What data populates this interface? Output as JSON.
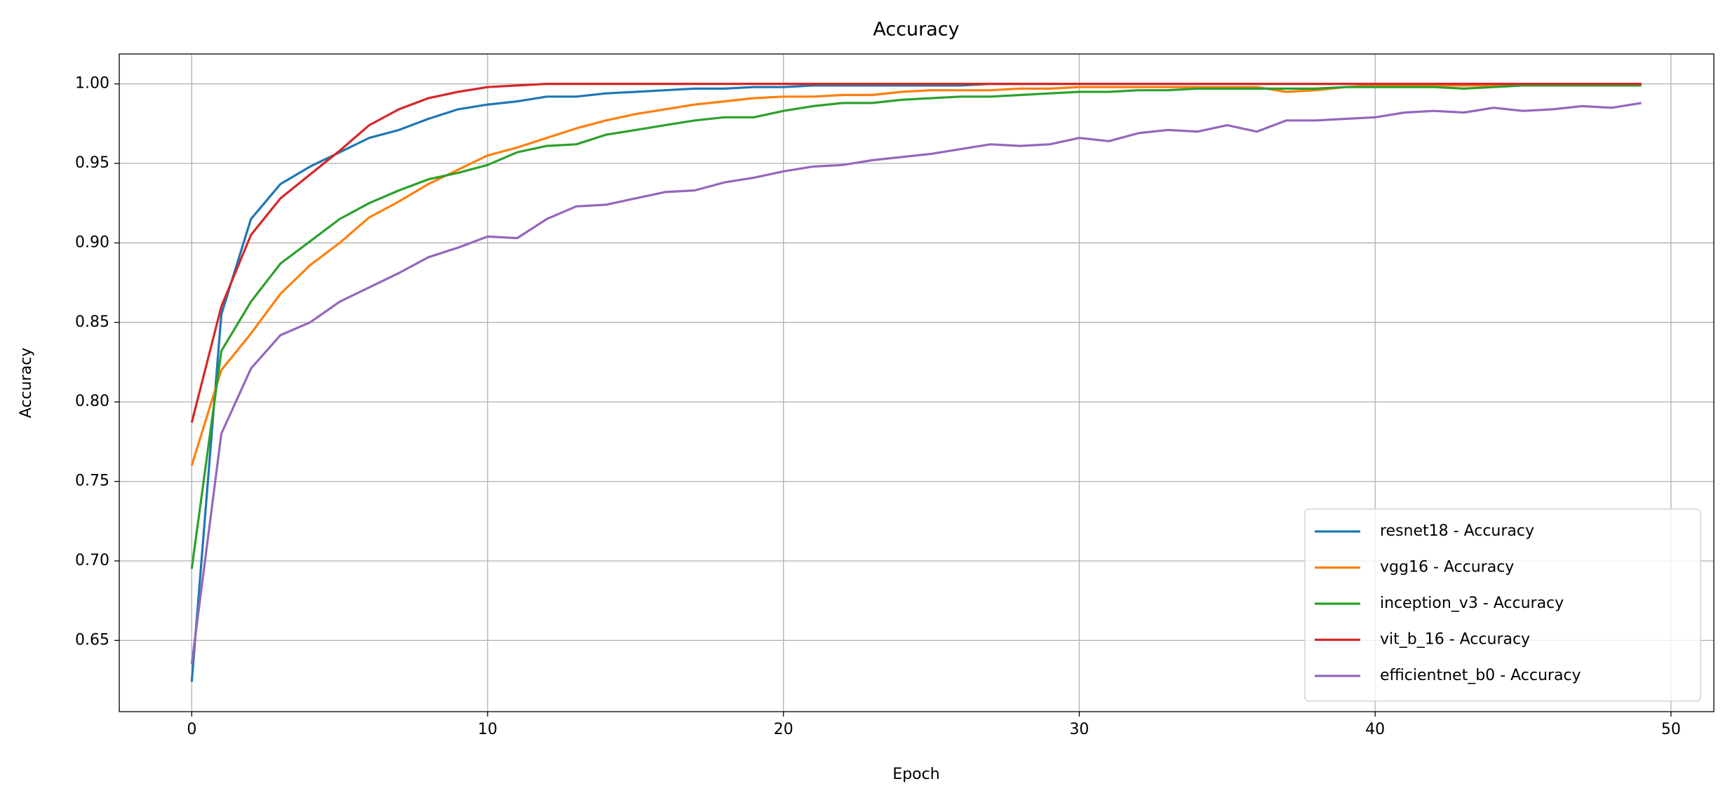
{
  "chart_data": {
    "type": "line",
    "title": "Accuracy",
    "x_label": "Epoch",
    "y_label": "Accuracy",
    "x": [
      0,
      1,
      2,
      3,
      4,
      5,
      6,
      7,
      8,
      9,
      10,
      11,
      12,
      13,
      14,
      15,
      16,
      17,
      18,
      19,
      20,
      21,
      22,
      23,
      24,
      25,
      26,
      27,
      28,
      29,
      30,
      31,
      32,
      33,
      34,
      35,
      36,
      37,
      38,
      39,
      40,
      41,
      42,
      43,
      44,
      45,
      46,
      47,
      48,
      49
    ],
    "series": [
      {
        "name": "resnet18 - Accuracy",
        "color": "#1f77b4",
        "values": [
          0.624,
          0.855,
          0.915,
          0.937,
          0.948,
          0.957,
          0.966,
          0.971,
          0.978,
          0.984,
          0.987,
          0.989,
          0.992,
          0.992,
          0.994,
          0.995,
          0.996,
          0.997,
          0.997,
          0.998,
          0.998,
          0.999,
          0.999,
          0.999,
          0.999,
          0.999,
          0.999,
          1.0,
          1.0,
          1.0,
          1.0,
          1.0,
          1.0,
          1.0,
          1.0,
          1.0,
          1.0,
          1.0,
          1.0,
          1.0,
          1.0,
          1.0,
          1.0,
          1.0,
          1.0,
          1.0,
          1.0,
          1.0,
          1.0,
          1.0
        ]
      },
      {
        "name": "vgg16 - Accuracy",
        "color": "#ff7f0e",
        "values": [
          0.76,
          0.82,
          0.843,
          0.868,
          0.886,
          0.9,
          0.916,
          0.926,
          0.937,
          0.946,
          0.955,
          0.96,
          0.966,
          0.972,
          0.977,
          0.981,
          0.984,
          0.987,
          0.989,
          0.991,
          0.992,
          0.992,
          0.993,
          0.993,
          0.995,
          0.996,
          0.996,
          0.996,
          0.997,
          0.997,
          0.998,
          0.998,
          0.998,
          0.998,
          0.998,
          0.998,
          0.998,
          0.995,
          0.996,
          0.998,
          0.999,
          0.999,
          0.999,
          0.999,
          0.999,
          0.999,
          0.999,
          0.999,
          0.999,
          0.999
        ]
      },
      {
        "name": "inception_v3 - Accuracy",
        "color": "#2ca02c",
        "values": [
          0.695,
          0.832,
          0.863,
          0.887,
          0.901,
          0.915,
          0.925,
          0.933,
          0.94,
          0.944,
          0.949,
          0.957,
          0.961,
          0.962,
          0.968,
          0.971,
          0.974,
          0.977,
          0.979,
          0.979,
          0.983,
          0.986,
          0.988,
          0.988,
          0.99,
          0.991,
          0.992,
          0.992,
          0.993,
          0.994,
          0.995,
          0.995,
          0.996,
          0.996,
          0.997,
          0.997,
          0.997,
          0.997,
          0.997,
          0.998,
          0.998,
          0.998,
          0.998,
          0.997,
          0.998,
          0.999,
          0.999,
          0.999,
          0.999,
          0.999
        ]
      },
      {
        "name": "vit_b_16 - Accuracy",
        "color": "#d62728",
        "values": [
          0.787,
          0.86,
          0.905,
          0.928,
          0.943,
          0.958,
          0.974,
          0.984,
          0.991,
          0.995,
          0.998,
          0.999,
          1.0,
          1.0,
          1.0,
          1.0,
          1.0,
          1.0,
          1.0,
          1.0,
          1.0,
          1.0,
          1.0,
          1.0,
          1.0,
          1.0,
          1.0,
          1.0,
          1.0,
          1.0,
          1.0,
          1.0,
          1.0,
          1.0,
          1.0,
          1.0,
          1.0,
          1.0,
          1.0,
          1.0,
          1.0,
          1.0,
          1.0,
          1.0,
          1.0,
          1.0,
          1.0,
          1.0,
          1.0,
          1.0
        ]
      },
      {
        "name": "efficientnet_b0 - Accuracy",
        "color": "#9467bd",
        "values": [
          0.635,
          0.78,
          0.821,
          0.842,
          0.85,
          0.863,
          0.872,
          0.881,
          0.891,
          0.897,
          0.904,
          0.903,
          0.915,
          0.923,
          0.924,
          0.928,
          0.932,
          0.933,
          0.938,
          0.941,
          0.945,
          0.948,
          0.949,
          0.952,
          0.954,
          0.956,
          0.959,
          0.962,
          0.961,
          0.962,
          0.966,
          0.964,
          0.969,
          0.971,
          0.97,
          0.974,
          0.97,
          0.977,
          0.977,
          0.978,
          0.979,
          0.982,
          0.983,
          0.982,
          0.985,
          0.983,
          0.984,
          0.986,
          0.985,
          0.988
        ]
      }
    ],
    "xlim": [
      -2.45,
      51.45
    ],
    "ylim": [
      0.6052,
      1.0188
    ],
    "xticks": [
      0,
      10,
      20,
      30,
      40,
      50
    ],
    "yticks": [
      0.65,
      {
        "value": 0.7,
        "label": "0.70"
      },
      0.75,
      {
        "value": 0.8,
        "label": "0.80"
      },
      0.85,
      {
        "value": 0.9,
        "label": "0.90"
      },
      0.95,
      {
        "value": 1.0,
        "label": "1.00"
      }
    ],
    "grid": true,
    "legend": "lower right"
  }
}
